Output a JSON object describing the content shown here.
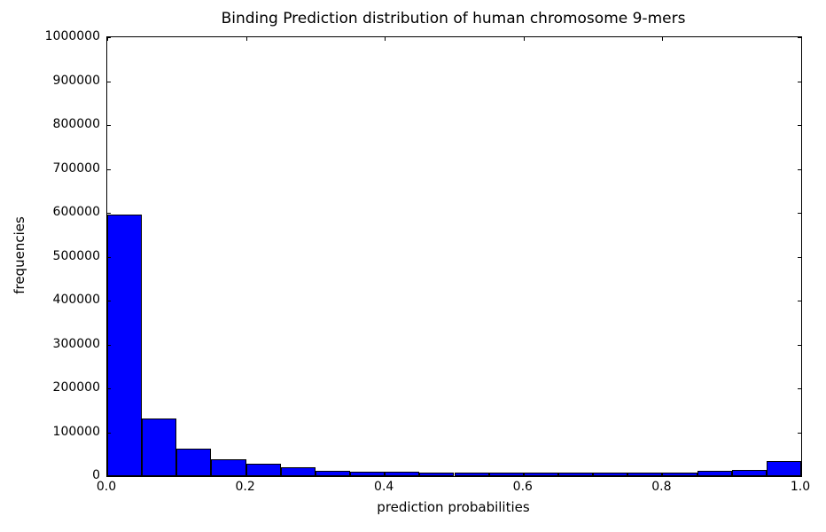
{
  "chart_data": {
    "type": "bar",
    "subtype": "histogram",
    "title": "Binding Prediction distribution of human chromosome 9-mers",
    "xlabel": "prediction probabilities",
    "ylabel": "frequencies",
    "xlim": [
      0.0,
      1.0
    ],
    "ylim": [
      0,
      1000000
    ],
    "grid": false,
    "legend_position": "none",
    "tick_direction": "in",
    "bar_color": "#0000ff",
    "bar_edge_color": "#000000",
    "background_color": "#ffffff",
    "bin_width": 0.05,
    "bin_edges": [
      0.0,
      0.05,
      0.1,
      0.15,
      0.2,
      0.25,
      0.3,
      0.35,
      0.4,
      0.45,
      0.5,
      0.55,
      0.6,
      0.65,
      0.7,
      0.75,
      0.8,
      0.85,
      0.9,
      0.95,
      1.0
    ],
    "counts": [
      595000,
      132000,
      62000,
      38000,
      28000,
      20000,
      13000,
      11000,
      10000,
      9000,
      9000,
      8000,
      9000,
      9000,
      9000,
      9000,
      9000,
      12000,
      14000,
      35000
    ],
    "x_tick_values": [
      0.0,
      0.2,
      0.4,
      0.6,
      0.8,
      1.0
    ],
    "x_tick_labels": [
      "0.0",
      "0.2",
      "0.4",
      "0.6",
      "0.8",
      "1.0"
    ],
    "y_tick_values": [
      0,
      100000,
      200000,
      300000,
      400000,
      500000,
      600000,
      700000,
      800000,
      900000,
      1000000
    ],
    "y_tick_labels": [
      "0",
      "100000",
      "200000",
      "300000",
      "400000",
      "500000",
      "600000",
      "700000",
      "800000",
      "900000",
      "1000000"
    ]
  }
}
